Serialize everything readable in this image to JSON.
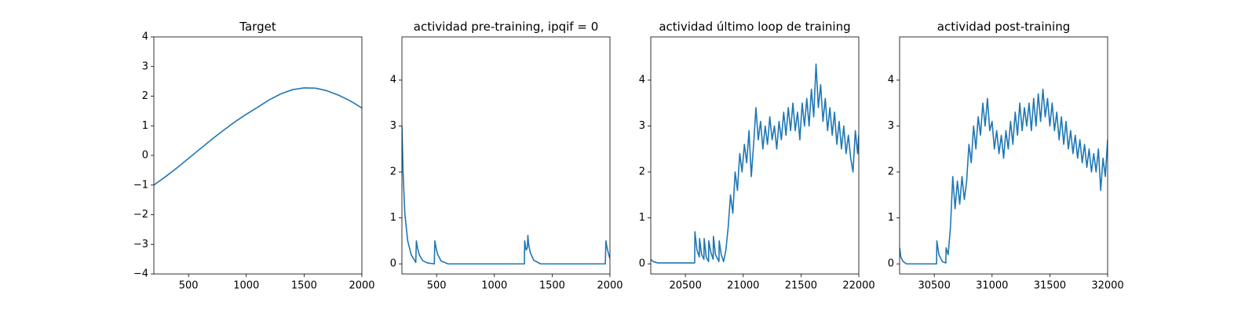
{
  "chart_data": [
    {
      "type": "line",
      "title": "Target",
      "color": "#1f77b4",
      "x": [
        200,
        300,
        400,
        500,
        600,
        700,
        800,
        900,
        1000,
        1100,
        1200,
        1300,
        1400,
        1500,
        1600,
        1700,
        1800,
        1900,
        2000
      ],
      "values": [
        -1.0,
        -0.72,
        -0.42,
        -0.1,
        0.22,
        0.54,
        0.84,
        1.13,
        1.39,
        1.63,
        1.88,
        2.08,
        2.22,
        2.28,
        2.27,
        2.18,
        2.03,
        1.84,
        1.6
      ],
      "xlim": [
        200,
        2000
      ],
      "xticks": [
        500,
        1000,
        1500,
        2000
      ],
      "ylim": [
        -4,
        4
      ],
      "yticks": [
        {
          "value": -4,
          "label": "−4"
        },
        {
          "value": -3,
          "label": "−3"
        },
        {
          "value": -2,
          "label": "−2"
        },
        {
          "value": -1,
          "label": "−1"
        },
        0,
        1,
        2,
        3,
        4
      ]
    },
    {
      "type": "line",
      "title": "actividad pre-training, ipqif = 0",
      "color": "#1f77b4",
      "x": [
        200,
        210,
        225,
        250,
        280,
        320,
        325,
        335,
        350,
        380,
        420,
        480,
        485,
        495,
        510,
        540,
        600,
        1260,
        1262,
        1275,
        1285,
        1290,
        1295,
        1310,
        1340,
        1400,
        1960,
        1965,
        1975,
        1990,
        2000
      ],
      "values": [
        3.0,
        2.0,
        1.1,
        0.5,
        0.2,
        0.03,
        0.5,
        0.35,
        0.2,
        0.07,
        0.02,
        0.0,
        0.5,
        0.35,
        0.2,
        0.06,
        0.0,
        0.0,
        0.5,
        0.3,
        0.35,
        0.62,
        0.45,
        0.25,
        0.08,
        0.0,
        0.0,
        0.5,
        0.35,
        0.2,
        0.12
      ],
      "xlim": [
        200,
        2000
      ],
      "xticks": [
        500,
        1000,
        1500,
        2000
      ],
      "ylim": [
        -0.22,
        4.94
      ],
      "yticks": [
        0,
        1,
        2,
        3,
        4
      ]
    },
    {
      "type": "line",
      "title": "actividad último loop de training",
      "color": "#1f77b4",
      "x": [
        20200,
        20220,
        20260,
        20580,
        20582,
        20600,
        20620,
        20622,
        20640,
        20660,
        20662,
        20680,
        20700,
        20702,
        20720,
        20740,
        20742,
        20760,
        20790,
        20792,
        20810,
        20830,
        20850,
        20870,
        20890,
        20910,
        20930,
        20950,
        20970,
        20990,
        21010,
        21030,
        21050,
        21070,
        21090,
        21110,
        21130,
        21150,
        21170,
        21190,
        21210,
        21230,
        21250,
        21270,
        21290,
        21310,
        21330,
        21350,
        21370,
        21390,
        21410,
        21430,
        21450,
        21470,
        21490,
        21510,
        21530,
        21550,
        21570,
        21590,
        21610,
        21630,
        21650,
        21670,
        21690,
        21710,
        21730,
        21750,
        21770,
        21790,
        21810,
        21830,
        21850,
        21870,
        21890,
        21910,
        21930,
        21950,
        21970,
        21990,
        22000
      ],
      "values": [
        0.1,
        0.05,
        0.02,
        0.02,
        0.7,
        0.3,
        0.15,
        0.55,
        0.2,
        0.1,
        0.55,
        0.15,
        0.05,
        0.5,
        0.25,
        0.1,
        0.6,
        0.2,
        0.05,
        0.5,
        0.2,
        0.05,
        0.3,
        0.8,
        1.5,
        1.1,
        2.0,
        1.6,
        2.4,
        2.0,
        2.6,
        2.2,
        2.9,
        1.9,
        2.6,
        3.4,
        2.7,
        3.1,
        2.5,
        3.0,
        2.6,
        3.2,
        2.7,
        3.0,
        2.5,
        3.1,
        2.7,
        3.3,
        2.8,
        3.4,
        2.9,
        3.5,
        2.9,
        3.3,
        2.7,
        3.5,
        3.0,
        3.6,
        3.0,
        3.8,
        3.2,
        4.35,
        3.4,
        3.9,
        3.1,
        3.6,
        2.9,
        3.4,
        2.8,
        3.3,
        2.6,
        3.1,
        2.5,
        3.0,
        2.4,
        2.8,
        2.3,
        2.0,
        2.9,
        2.4,
        2.8
      ],
      "xlim": [
        20200,
        22000
      ],
      "xticks": [
        20500,
        21000,
        21500,
        22000
      ],
      "ylim": [
        -0.22,
        4.94
      ],
      "yticks": [
        0,
        1,
        2,
        3,
        4
      ]
    },
    {
      "type": "line",
      "title": "actividad post-training",
      "color": "#1f77b4",
      "x": [
        30200,
        30210,
        30230,
        30260,
        30520,
        30522,
        30540,
        30570,
        30600,
        30602,
        30620,
        30640,
        30660,
        30680,
        30700,
        30720,
        30740,
        30760,
        30780,
        30800,
        30820,
        30840,
        30860,
        30880,
        30900,
        30920,
        30940,
        30960,
        30980,
        31000,
        31020,
        31040,
        31060,
        31080,
        31100,
        31120,
        31140,
        31160,
        31180,
        31200,
        31220,
        31240,
        31260,
        31280,
        31300,
        31320,
        31340,
        31360,
        31380,
        31400,
        31420,
        31440,
        31460,
        31480,
        31500,
        31520,
        31540,
        31560,
        31580,
        31600,
        31620,
        31640,
        31660,
        31680,
        31700,
        31720,
        31740,
        31760,
        31780,
        31800,
        31820,
        31840,
        31860,
        31880,
        31900,
        31920,
        31940,
        31960,
        31980,
        32000
      ],
      "values": [
        0.35,
        0.15,
        0.05,
        0.0,
        0.0,
        0.5,
        0.2,
        0.05,
        0.02,
        0.35,
        0.2,
        0.8,
        1.9,
        1.2,
        1.8,
        1.3,
        1.9,
        1.4,
        1.8,
        2.6,
        2.2,
        3.0,
        2.5,
        3.2,
        2.8,
        3.5,
        3.0,
        3.6,
        2.9,
        3.1,
        2.5,
        2.9,
        2.4,
        2.8,
        2.3,
        2.9,
        2.5,
        3.1,
        2.6,
        3.3,
        2.8,
        3.5,
        2.9,
        3.4,
        3.0,
        3.5,
        2.9,
        3.6,
        3.0,
        3.7,
        3.1,
        3.8,
        3.2,
        3.6,
        3.0,
        3.5,
        2.9,
        3.3,
        2.7,
        3.2,
        2.6,
        3.1,
        2.5,
        2.9,
        2.4,
        2.8,
        2.3,
        2.7,
        2.2,
        2.6,
        2.1,
        2.5,
        2.0,
        2.4,
        2.0,
        2.5,
        1.6,
        2.3,
        1.9,
        2.7
      ],
      "xlim": [
        30200,
        32000
      ],
      "xticks": [
        30500,
        31000,
        31500,
        32000
      ],
      "ylim": [
        -0.22,
        4.94
      ],
      "yticks": [
        0,
        1,
        2,
        3,
        4
      ]
    }
  ]
}
